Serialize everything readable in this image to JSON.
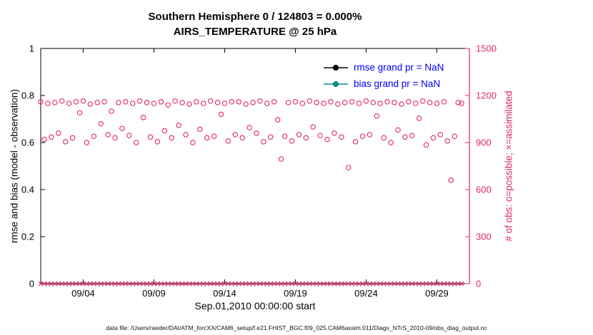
{
  "figure": {
    "title_line1": "Southern Hemisphere 0 / 124803 = 0.000%",
    "title_line2": "AIRS_TEMPERATURE @ 25 hPa",
    "footer": "data file: /Users/raeder/DAI/ATM_forcXX/CAM6_setup/f.e21.FHIST_BGC.f09_025.CAM6assim.011/Diags_NTrS_2010-09/obs_diag_output.nc"
  },
  "legend": {
    "text_color": "#0000ff",
    "items": [
      {
        "label": "rmse grand pr = NaN",
        "color": "#000000"
      },
      {
        "label": "bias grand pr = NaN",
        "color": "#0e8e82"
      }
    ]
  },
  "chart_data": {
    "type": "scatter",
    "title": "Southern Hemisphere 0 / 124803 = 0.000% — AIRS_TEMPERATURE @ 25 hPa",
    "xlabel": "Sep.01,2010 00:00:00 start",
    "ylabel_left": "rmse and bias (model - observation)",
    "ylabel_right": "# of obs: o=possible; ×=assimilated",
    "grid": false,
    "legend_position": "top-right-inside",
    "accent_color": "#e02865",
    "left_ylim": [
      0,
      1
    ],
    "left_yticks": [
      0,
      0.2,
      0.4,
      0.6,
      0.8,
      1
    ],
    "right_ylim": [
      0,
      1500
    ],
    "right_yticks": [
      0,
      300,
      600,
      900,
      1200,
      1500
    ],
    "x_range_days": [
      1,
      31.3
    ],
    "x_tick_days": [
      4,
      9,
      14,
      19,
      24,
      29
    ],
    "x_tick_labels": [
      "09/04",
      "09/09",
      "09/14",
      "09/19",
      "09/24",
      "09/29"
    ],
    "series": [
      {
        "name": "possible",
        "marker": "o",
        "axis": "right",
        "x_first_day": 1,
        "x_step_days": 0.25,
        "n": 120,
        "values": [
          1160,
          920,
          1150,
          935,
          1155,
          960,
          1165,
          905,
          1150,
          930,
          1160,
          1090,
          1165,
          900,
          1145,
          940,
          1155,
          1020,
          1160,
          950,
          1100,
          930,
          1155,
          990,
          1160,
          945,
          1150,
          900,
          1165,
          1060,
          1155,
          935,
          1150,
          905,
          1160,
          975,
          1140,
          930,
          1165,
          1010,
          1155,
          950,
          1145,
          900,
          1160,
          985,
          1150,
          930,
          1165,
          940,
          1155,
          1080,
          1150,
          910,
          1160,
          950,
          1160,
          930,
          1145,
          995,
          1155,
          960,
          1165,
          905,
          1150,
          935,
          1160,
          1045,
          795,
          940,
          1155,
          910,
          1160,
          950,
          1150,
          930,
          1165,
          1000,
          1155,
          945,
          1150,
          920,
          1160,
          960,
          1145,
          935,
          1155,
          740,
          1160,
          905,
          1150,
          940,
          1165,
          950,
          1155,
          1070,
          1150,
          930,
          1160,
          900,
          1155,
          980,
          1145,
          935,
          1160,
          945,
          1150,
          1055,
          1165,
          885,
          1155,
          930,
          1150,
          950,
          1160,
          910,
          660,
          940,
          1155,
          1150
        ]
      },
      {
        "name": "assimilated",
        "marker": "x",
        "axis": "right",
        "x_first_day": 1,
        "x_step_days": 0.25,
        "n": 120,
        "constant_value": 0
      },
      {
        "name": "rmse",
        "axis": "left",
        "grand_pr": "NaN",
        "values": null
      },
      {
        "name": "bias",
        "axis": "left",
        "grand_pr": "NaN",
        "values": null
      }
    ]
  }
}
